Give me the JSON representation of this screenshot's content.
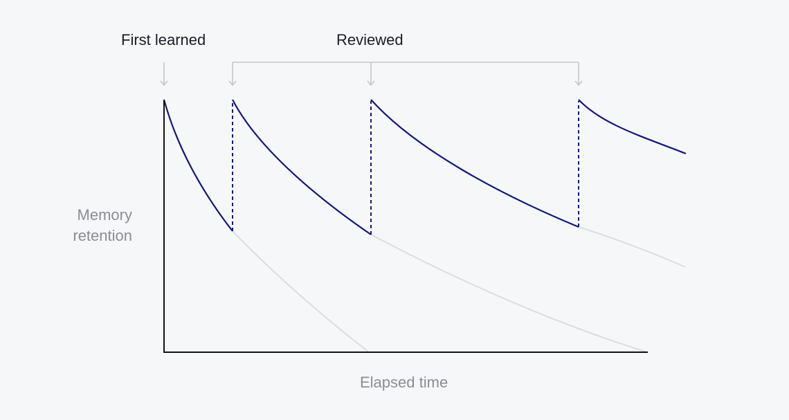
{
  "annotations": {
    "first_learned": "First learned",
    "reviewed": "Reviewed"
  },
  "axes": {
    "y_label": "Memory retention",
    "x_label": "Elapsed time"
  },
  "colors": {
    "background": "#f6f7f9",
    "active_curve": "#14157a",
    "faded_curve": "#dcdde0",
    "axis": "#111111",
    "bracket": "#c3c5ca"
  }
}
